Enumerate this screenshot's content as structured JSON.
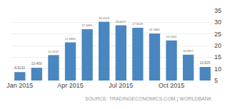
{
  "chart_data": {
    "type": "bar",
    "categories": [
      "Jan 2015",
      null,
      null,
      "Apr 2015",
      null,
      null,
      "Jul 2015",
      null,
      null,
      "Oct 2015",
      null,
      null
    ],
    "values": [
      8.6132,
      10.459,
      15.9137,
      21.3865,
      27.0695,
      30.2518,
      28.6917,
      27.6523,
      25.1882,
      22.1922,
      16.0877,
      10.825
    ],
    "color": "#4a86c0",
    "ylim": [
      5,
      35
    ],
    "yticks": [
      5,
      10,
      15,
      20,
      25,
      30,
      35
    ],
    "grid": true,
    "data_labels": true,
    "annotations": [
      "SOURCE: TRADINGECONOMICS.COM | WORLDBANK"
    ]
  }
}
